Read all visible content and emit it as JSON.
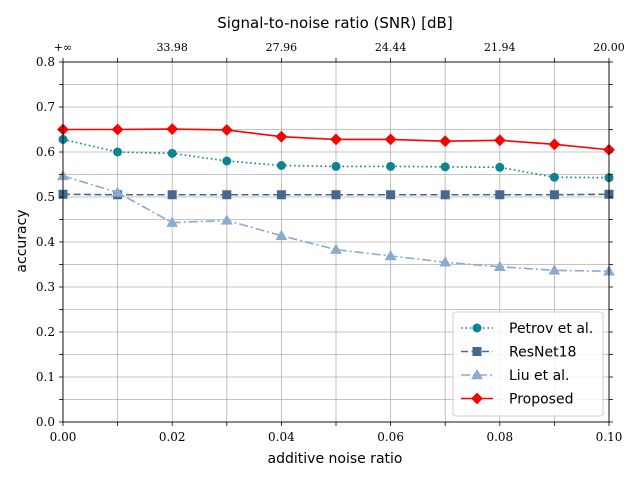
{
  "chart_data": {
    "type": "line",
    "title": "Signal-to-noise ratio (SNR) [dB]",
    "xlabel": "additive noise ratio",
    "ylabel": "accuracy",
    "xlim": [
      0.0,
      0.1
    ],
    "ylim": [
      0.0,
      0.8
    ],
    "x": [
      0.0,
      0.01,
      0.02,
      0.03,
      0.04,
      0.05,
      0.06,
      0.07,
      0.08,
      0.09,
      0.1
    ],
    "x_ticks": [
      "0.00",
      "0.02",
      "0.04",
      "0.06",
      "0.08",
      "0.10"
    ],
    "x_tick_values": [
      0.0,
      0.02,
      0.04,
      0.06,
      0.08,
      0.1
    ],
    "y_ticks": [
      "0.0",
      "0.1",
      "0.2",
      "0.3",
      "0.4",
      "0.5",
      "0.6",
      "0.7",
      "0.8"
    ],
    "y_tick_values": [
      0.0,
      0.1,
      0.2,
      0.3,
      0.4,
      0.5,
      0.6,
      0.7,
      0.8
    ],
    "top_axis_ticks": [
      "+∞",
      "33.98",
      "27.96",
      "24.44",
      "21.94",
      "20.00"
    ],
    "grid": true,
    "minor_grid_x": true,
    "minor_grid_y": true,
    "legend_position": "lower-right",
    "series": [
      {
        "name": "Petrov et al.",
        "color": "#0e8490",
        "linestyle": "dotted",
        "marker": "circle",
        "values": [
          0.628,
          0.6,
          0.597,
          0.58,
          0.57,
          0.568,
          0.568,
          0.567,
          0.566,
          0.544,
          0.543
        ]
      },
      {
        "name": "ResNet18",
        "color": "#456990",
        "linestyle": "dashed",
        "marker": "square",
        "values": [
          0.506,
          0.505,
          0.505,
          0.505,
          0.505,
          0.505,
          0.505,
          0.505,
          0.505,
          0.505,
          0.506
        ]
      },
      {
        "name": "Liu et al.",
        "color": "#8aaad0",
        "linestyle": "dashdot",
        "marker": "triangle",
        "values": [
          0.547,
          0.51,
          0.443,
          0.448,
          0.414,
          0.383,
          0.369,
          0.355,
          0.345,
          0.337,
          0.335
        ]
      },
      {
        "name": "Proposed",
        "color": "#ff0000",
        "linestyle": "solid",
        "marker": "diamond",
        "values": [
          0.65,
          0.65,
          0.651,
          0.649,
          0.634,
          0.628,
          0.628,
          0.624,
          0.626,
          0.617,
          0.605
        ]
      }
    ]
  }
}
